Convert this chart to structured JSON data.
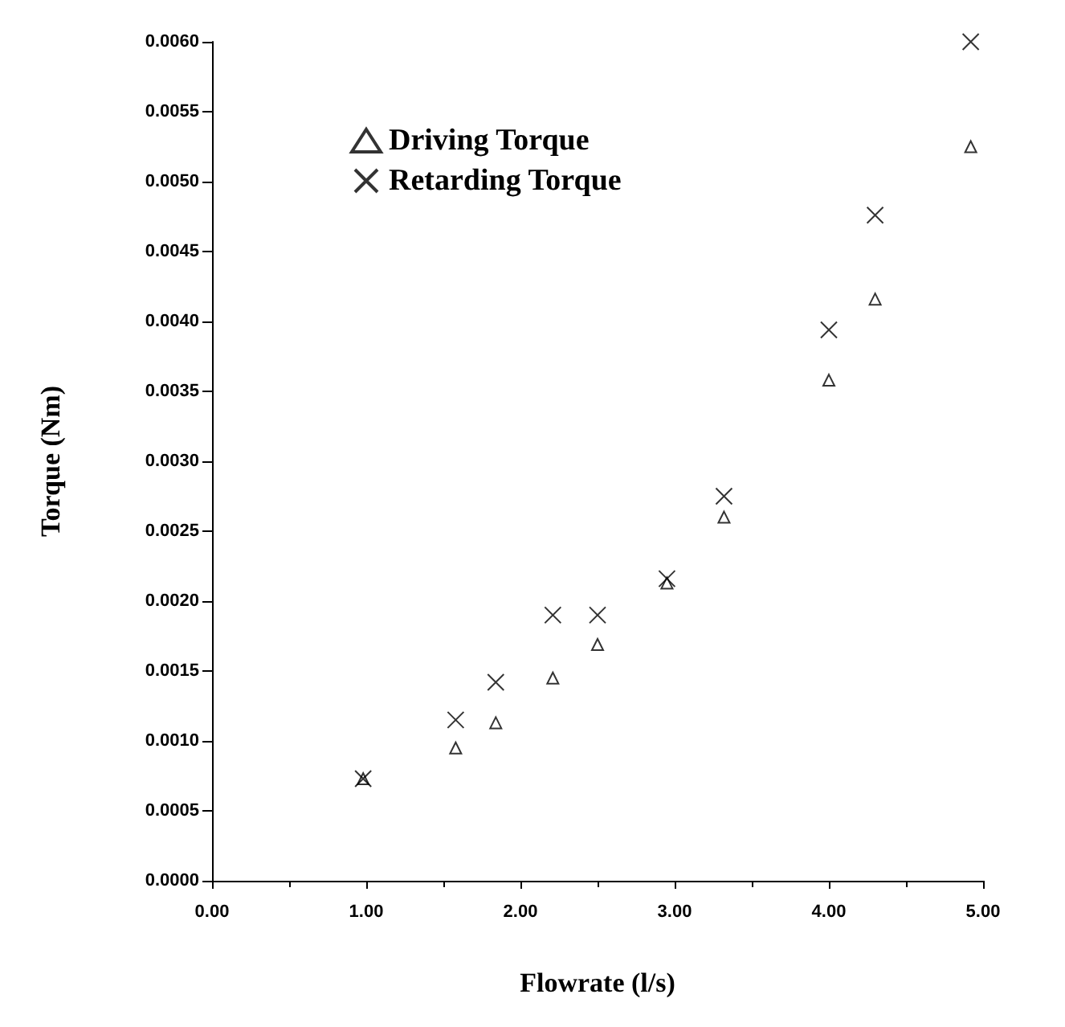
{
  "chart_data": {
    "type": "scatter",
    "xlabel": "Flowrate (l/s)",
    "ylabel": "Torque (Nm)",
    "xlim": [
      0,
      5
    ],
    "xticks": [
      {
        "value": 0,
        "label": "0.00"
      },
      {
        "value": 1,
        "label": "1.00"
      },
      {
        "value": 2,
        "label": "2.00"
      },
      {
        "value": 3,
        "label": "3.00"
      },
      {
        "value": 4,
        "label": "4.00"
      },
      {
        "value": 5,
        "label": "5.00"
      }
    ],
    "ylim": [
      0,
      0.006
    ],
    "yticks": [
      {
        "value": 0,
        "label": "0.0000"
      },
      {
        "value": 0.0005,
        "label": "0.0005"
      },
      {
        "value": 0.001,
        "label": "0.0010"
      },
      {
        "value": 0.0015,
        "label": "0.0015"
      },
      {
        "value": 0.002,
        "label": "0.0020"
      },
      {
        "value": 0.0025,
        "label": "0.0025"
      },
      {
        "value": 0.003,
        "label": "0.0030"
      },
      {
        "value": 0.0035,
        "label": "0.0035"
      },
      {
        "value": 0.004,
        "label": "0.0040"
      },
      {
        "value": 0.0045,
        "label": "0.0045"
      },
      {
        "value": 0.005,
        "label": "0.0050"
      },
      {
        "value": 0.0055,
        "label": "0.0055"
      },
      {
        "value": 0.006,
        "label": "0.0060"
      }
    ],
    "grid": false,
    "legend": "top left",
    "series": [
      {
        "name": "Driving Torque",
        "color": "#000000",
        "marker": "triangle",
        "x": [
          0.98,
          1.58,
          1.84,
          2.21,
          2.5,
          2.95,
          3.32,
          4.0,
          4.3,
          4.92
        ],
        "values": [
          0.00073,
          0.00095,
          0.00113,
          0.00145,
          0.00169,
          0.00213,
          0.0026,
          0.00358,
          0.00416,
          0.00525
        ]
      },
      {
        "name": "Retarding Torque",
        "color": "#000000",
        "marker": "cross",
        "x": [
          0.98,
          1.58,
          1.84,
          2.21,
          2.5,
          2.95,
          3.32,
          4.0,
          4.3,
          4.92
        ],
        "values": [
          0.00073,
          0.00115,
          0.00142,
          0.0019,
          0.0019,
          0.00216,
          0.00275,
          0.00394,
          0.00476,
          0.006
        ]
      }
    ]
  }
}
